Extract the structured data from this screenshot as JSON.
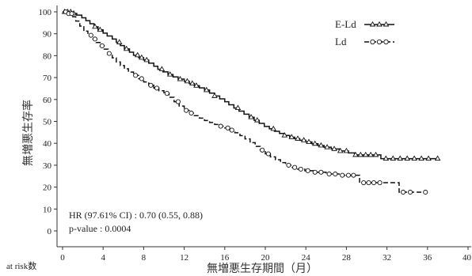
{
  "chart_data": {
    "type": "line",
    "title": "",
    "xlabel": "無増悪生存期間（月）",
    "ylabel": "無増悪生存率",
    "xlim": [
      0,
      40
    ],
    "ylim": [
      0,
      100
    ],
    "x_ticks": [
      "0",
      "4",
      "8",
      "12",
      "16",
      "20",
      "24",
      "28",
      "32",
      "36",
      "40"
    ],
    "y_ticks": [
      "0",
      "10",
      "20",
      "30",
      "40",
      "50",
      "60",
      "70",
      "80",
      "90",
      "100"
    ],
    "grid": false,
    "legend_position": "top-right",
    "colors": {
      "line": "#111111",
      "marker_fill": "#ffffff",
      "background": "#ffffff"
    },
    "series": [
      {
        "name": "E-Ld",
        "line_style": "solid",
        "marker": "triangle",
        "points": [
          [
            0,
            100
          ],
          [
            0.9,
            99.3
          ],
          [
            1.4,
            98.5
          ],
          [
            1.9,
            97.3
          ],
          [
            2.3,
            96
          ],
          [
            2.7,
            94.6
          ],
          [
            3.1,
            93.2
          ],
          [
            3.5,
            91.8
          ],
          [
            4.0,
            90.3
          ],
          [
            4.4,
            89
          ],
          [
            4.9,
            87.6
          ],
          [
            5.3,
            86.1
          ],
          [
            5.7,
            84.6
          ],
          [
            6.1,
            83.1
          ],
          [
            6.6,
            81.6
          ],
          [
            7.0,
            80.2
          ],
          [
            7.5,
            79.1
          ],
          [
            8.0,
            78
          ],
          [
            8.5,
            76.6
          ],
          [
            9.0,
            75.2
          ],
          [
            9.4,
            73.8
          ],
          [
            9.9,
            72.6
          ],
          [
            10.4,
            71.4
          ],
          [
            10.9,
            70.3
          ],
          [
            11.4,
            69.3
          ],
          [
            12.0,
            68.3
          ],
          [
            12.5,
            67.3
          ],
          [
            13.0,
            66.3
          ],
          [
            13.5,
            65.3
          ],
          [
            14.0,
            64.3
          ],
          [
            14.5,
            62.9
          ],
          [
            15.0,
            61.6
          ],
          [
            15.5,
            60.3
          ],
          [
            16.0,
            59
          ],
          [
            16.4,
            57.6
          ],
          [
            16.9,
            56.1
          ],
          [
            17.4,
            54.7
          ],
          [
            17.9,
            53.3
          ],
          [
            18.4,
            51.9
          ],
          [
            18.9,
            50.5
          ],
          [
            19.4,
            49.1
          ],
          [
            19.9,
            47.7
          ],
          [
            20.4,
            46.6
          ],
          [
            20.9,
            45.5
          ],
          [
            21.4,
            44.5
          ],
          [
            21.9,
            43.6
          ],
          [
            22.4,
            42.8
          ],
          [
            22.9,
            42.1
          ],
          [
            23.4,
            41.4
          ],
          [
            24.0,
            40.6
          ],
          [
            24.6,
            39.8
          ],
          [
            25.2,
            39
          ],
          [
            25.8,
            38.2
          ],
          [
            26.5,
            37.4
          ],
          [
            27.3,
            36.5
          ],
          [
            28.2,
            35.6
          ],
          [
            28.8,
            34.7
          ],
          [
            31.4,
            33.0
          ],
          [
            37.0,
            33.0
          ]
        ],
        "censored": [
          0.2,
          0.5,
          0.8,
          1.1,
          3.2,
          3.7,
          5.6,
          6.3,
          7.4,
          7.8,
          8.3,
          9.8,
          10.6,
          11.6,
          12.3,
          12.8,
          13.2,
          14.2,
          15.0,
          17.3,
          18.6,
          19.2,
          20.8,
          21.9,
          22.6,
          23.2,
          23.8,
          24.3,
          24.9,
          25.5,
          26.1,
          26.8,
          27.4,
          28.0,
          28.9,
          29.4,
          29.9,
          30.4,
          30.9,
          31.9,
          32.6,
          33.3,
          34.0,
          34.7,
          35.4,
          36.1,
          37.0
        ]
      },
      {
        "name": "Ld",
        "line_style": "dashed",
        "marker": "circle",
        "points": [
          [
            0,
            100
          ],
          [
            0.6,
            99.2
          ],
          [
            1.0,
            97.8
          ],
          [
            1.3,
            95.8
          ],
          [
            1.7,
            93.5
          ],
          [
            2.1,
            91.2
          ],
          [
            2.5,
            89.3
          ],
          [
            2.9,
            87.6
          ],
          [
            3.3,
            86
          ],
          [
            3.7,
            84.5
          ],
          [
            4.1,
            83
          ],
          [
            4.5,
            81
          ],
          [
            4.9,
            79
          ],
          [
            5.3,
            77.1
          ],
          [
            5.7,
            75.5
          ],
          [
            6.1,
            74
          ],
          [
            6.5,
            72.5
          ],
          [
            7.0,
            71
          ],
          [
            7.5,
            69.5
          ],
          [
            8.0,
            68
          ],
          [
            8.5,
            66.5
          ],
          [
            9.0,
            65.2
          ],
          [
            9.5,
            64
          ],
          [
            10.0,
            62.8
          ],
          [
            10.5,
            61
          ],
          [
            11.0,
            59
          ],
          [
            11.5,
            57
          ],
          [
            12.0,
            55
          ],
          [
            12.5,
            53.8
          ],
          [
            13.0,
            52.6
          ],
          [
            13.5,
            51.5
          ],
          [
            14.0,
            50.4
          ],
          [
            14.5,
            49.5
          ],
          [
            15.0,
            48.6
          ],
          [
            15.5,
            47.8
          ],
          [
            16.0,
            47
          ],
          [
            16.5,
            46
          ],
          [
            17.0,
            44.8
          ],
          [
            17.5,
            43.5
          ],
          [
            18.0,
            42
          ],
          [
            18.5,
            40.3
          ],
          [
            19.0,
            38.6
          ],
          [
            19.5,
            36.9
          ],
          [
            20.0,
            35.2
          ],
          [
            20.5,
            33.8
          ],
          [
            21.0,
            32.5
          ],
          [
            21.5,
            31.2
          ],
          [
            22.0,
            30
          ],
          [
            22.6,
            29
          ],
          [
            23.2,
            28.2
          ],
          [
            23.9,
            27.5
          ],
          [
            24.8,
            26.8
          ],
          [
            26.0,
            26
          ],
          [
            27.5,
            25.4
          ],
          [
            29.3,
            22.0
          ],
          [
            33.2,
            17.7
          ],
          [
            35.8,
            17.7
          ]
        ],
        "censored": [
          0.3,
          0.6,
          0.9,
          2.8,
          3.2,
          3.9,
          4.6,
          7.2,
          7.8,
          8.7,
          9.3,
          10.3,
          11.4,
          12.2,
          12.7,
          15.6,
          16.3,
          16.7,
          19.7,
          20.3,
          22.3,
          22.9,
          23.5,
          24.2,
          24.9,
          25.5,
          26.3,
          26.9,
          27.6,
          28.2,
          28.7,
          29.7,
          30.2,
          30.7,
          31.3,
          33.6,
          34.3,
          35.8
        ]
      }
    ],
    "annotations": [
      "HR (97.61% CI) : 0.70 (0.55, 0.88)",
      "p-value : 0.0004"
    ],
    "at_risk_label": "at risk数"
  }
}
